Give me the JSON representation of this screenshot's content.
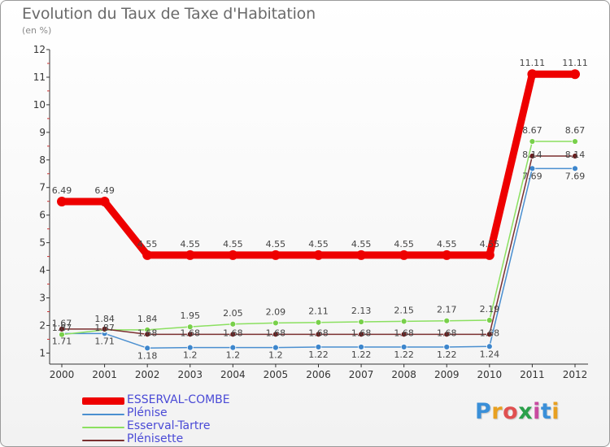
{
  "colors": {
    "ESSERVAL-COMBE": "#ee0000",
    "Plénise": "#4a8fd0",
    "Esserval-Tartre": "#8be060",
    "Plénisette": "#7a3030",
    "axis": "#333333",
    "label": "#444444",
    "legend_text": "#4a4ad6"
  },
  "chart_data": {
    "type": "line",
    "title": "Evolution du Taux de Taxe d'Habitation",
    "subtitle": "(en %)",
    "xlabel": "",
    "ylabel": "",
    "ylim": [
      0.6,
      12
    ],
    "yticks": [
      1,
      2,
      3,
      4,
      5,
      6,
      7,
      8,
      9,
      10,
      11,
      12
    ],
    "x": [
      "2000",
      "2001",
      "2002",
      "2003",
      "2004",
      "2005",
      "2006",
      "2007",
      "2008",
      "2009",
      "2010",
      "2011",
      "2012"
    ],
    "series": [
      {
        "name": "ESSERVAL-COMBE",
        "values": [
          6.49,
          6.49,
          4.55,
          4.55,
          4.55,
          4.55,
          4.55,
          4.55,
          4.55,
          4.55,
          4.55,
          11.11,
          11.11
        ],
        "labels": [
          "6.49",
          "6.49",
          "4.55",
          "4.55",
          "4.55",
          "4.55",
          "4.55",
          "4.55",
          "4.55",
          "4.55",
          "4.55",
          "11.11",
          "11.11"
        ]
      },
      {
        "name": "Plénise",
        "values": [
          1.71,
          1.71,
          1.18,
          1.2,
          1.2,
          1.2,
          1.22,
          1.22,
          1.22,
          1.22,
          1.24,
          7.69,
          7.69
        ],
        "labels": [
          "1.71",
          "1.71",
          "1.18",
          "1.2",
          "1.2",
          "1.2",
          "1.22",
          "1.22",
          "1.22",
          "1.22",
          "1.24",
          "7.69",
          "7.69"
        ]
      },
      {
        "name": "Esserval-Tartre",
        "values": [
          1.67,
          1.84,
          1.84,
          1.95,
          2.05,
          2.09,
          2.11,
          2.13,
          2.15,
          2.17,
          2.19,
          8.67,
          8.67
        ],
        "labels": [
          "1.67",
          "1.84",
          "1.84",
          "1.95",
          "2.05",
          "2.09",
          "2.11",
          "2.13",
          "2.15",
          "2.17",
          "2.19",
          "8.67",
          "8.67"
        ]
      },
      {
        "name": "Plénisette",
        "values": [
          1.87,
          1.87,
          1.68,
          1.68,
          1.68,
          1.68,
          1.68,
          1.68,
          1.68,
          1.68,
          1.68,
          8.14,
          8.14
        ],
        "labels": [
          "1.87",
          "1.87",
          "1.68",
          "1.68",
          "1.68",
          "1.68",
          "1.68",
          "1.68",
          "1.68",
          "1.68",
          "1.68",
          "8.14",
          "8.14"
        ]
      }
    ]
  },
  "legend": {
    "items": [
      "ESSERVAL-COMBE",
      "Plénise",
      "Esserval-Tartre",
      "Plénisette"
    ]
  },
  "brand": {
    "name": "Proxiti",
    "letters": [
      "P",
      "r",
      "o",
      "x",
      "i",
      "t",
      "i"
    ],
    "letter_colors": [
      "#3a8fd8",
      "#e8a020",
      "#e05050",
      "#2aa04a",
      "#c84aa0",
      "#3a8fd8",
      "#e8a020"
    ]
  }
}
